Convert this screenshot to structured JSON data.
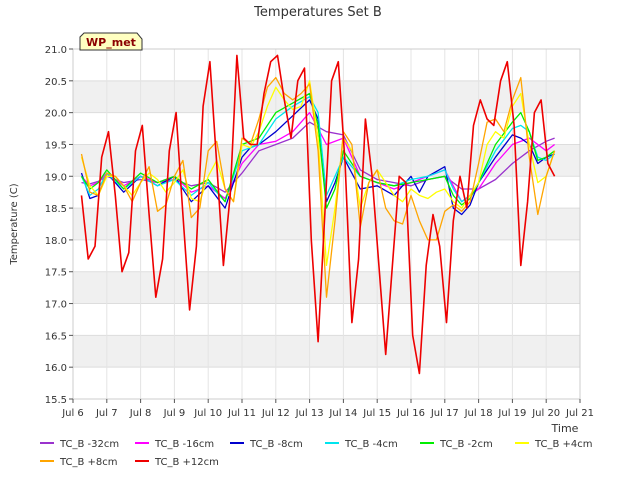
{
  "chart_data": {
    "type": "line",
    "title": "Temperatures Set B",
    "xlabel": "Time",
    "ylabel": "Temperature (C)",
    "badge": "WP_met",
    "xlim": [
      6,
      21
    ],
    "ylim": [
      15.5,
      21.0
    ],
    "x_ticks": [
      {
        "v": 6,
        "label": "Jul 6"
      },
      {
        "v": 7,
        "label": "Jul 7"
      },
      {
        "v": 8,
        "label": "Jul 8"
      },
      {
        "v": 9,
        "label": "Jul 9"
      },
      {
        "v": 10,
        "label": "Jul 10"
      },
      {
        "v": 11,
        "label": "Jul 11"
      },
      {
        "v": 12,
        "label": "Jul 12"
      },
      {
        "v": 13,
        "label": "Jul 13"
      },
      {
        "v": 14,
        "label": "Jul 14"
      },
      {
        "v": 15,
        "label": "Jul 15"
      },
      {
        "v": 16,
        "label": "Jul 16"
      },
      {
        "v": 17,
        "label": "Jul 17"
      },
      {
        "v": 18,
        "label": "Jul 18"
      },
      {
        "v": 19,
        "label": "Jul 19"
      },
      {
        "v": 20,
        "label": "Jul 20"
      },
      {
        "v": 21,
        "label": "Jul 21"
      }
    ],
    "y_ticks": [
      {
        "v": 15.5,
        "label": "15.5"
      },
      {
        "v": 16.0,
        "label": "16.0"
      },
      {
        "v": 16.5,
        "label": "16.5"
      },
      {
        "v": 17.0,
        "label": "17.0"
      },
      {
        "v": 17.5,
        "label": "17.5"
      },
      {
        "v": 18.0,
        "label": "18.0"
      },
      {
        "v": 18.5,
        "label": "18.5"
      },
      {
        "v": 19.0,
        "label": "19.0"
      },
      {
        "v": 19.5,
        "label": "19.5"
      },
      {
        "v": 20.0,
        "label": "20.0"
      },
      {
        "v": 20.5,
        "label": "20.5"
      },
      {
        "v": 21.0,
        "label": "21.0"
      }
    ],
    "grid": true,
    "legend_placement": "bottom",
    "series": [
      {
        "name": "TC_B -32cm",
        "color": "#9a32cd",
        "x": [
          6.25,
          6.5,
          6.75,
          7,
          7.5,
          8,
          8.5,
          9,
          9.5,
          10,
          10.5,
          11,
          11.5,
          12,
          12.5,
          13,
          13.5,
          14,
          14.5,
          15,
          15.5,
          16,
          16.5,
          17,
          17.5,
          18,
          18.5,
          19,
          19.5,
          20,
          20.25
        ],
        "y": [
          18.9,
          18.88,
          18.92,
          19.0,
          18.9,
          18.95,
          18.9,
          18.95,
          18.85,
          18.9,
          18.75,
          19.05,
          19.4,
          19.5,
          19.6,
          19.85,
          19.7,
          19.65,
          19.1,
          18.95,
          18.9,
          18.85,
          18.95,
          19.0,
          18.8,
          18.8,
          18.95,
          19.2,
          19.4,
          19.55,
          19.6
        ]
      },
      {
        "name": "TC_B -16cm",
        "color": "#ff00ff",
        "x": [
          6.25,
          6.5,
          6.75,
          7,
          7.5,
          8,
          8.5,
          9,
          9.5,
          10,
          10.5,
          11,
          11.5,
          12,
          12.5,
          13,
          13.5,
          14,
          14.5,
          15,
          15.5,
          16,
          16.5,
          17,
          17.5,
          18,
          18.5,
          19,
          19.5,
          20,
          20.25
        ],
        "y": [
          19.0,
          18.85,
          18.9,
          19.05,
          18.85,
          19.0,
          18.9,
          19.0,
          18.75,
          18.85,
          18.65,
          19.2,
          19.5,
          19.55,
          19.7,
          20.0,
          19.5,
          19.6,
          19.0,
          18.9,
          18.8,
          18.9,
          19.0,
          19.1,
          18.6,
          18.8,
          19.2,
          19.5,
          19.6,
          19.4,
          19.5
        ]
      },
      {
        "name": "TC_B -8cm",
        "color": "#0000cd",
        "x": [
          6.25,
          6.5,
          6.75,
          7,
          7.5,
          8,
          8.5,
          9,
          9.5,
          10,
          10.5,
          11,
          11.25,
          11.5,
          11.75,
          12,
          12.5,
          13,
          13.25,
          13.5,
          13.75,
          14,
          14.5,
          15,
          15.5,
          16,
          16.25,
          16.5,
          17,
          17.25,
          17.5,
          17.75,
          18,
          18.5,
          19,
          19.25,
          19.5,
          19.75,
          20,
          20.25
        ],
        "y": [
          19.05,
          18.65,
          18.7,
          19.05,
          18.75,
          19.0,
          18.85,
          19.0,
          18.6,
          18.85,
          18.5,
          19.3,
          19.45,
          19.5,
          19.6,
          19.7,
          19.95,
          20.2,
          19.9,
          18.6,
          18.9,
          19.3,
          18.8,
          18.85,
          18.7,
          19.0,
          18.75,
          19.0,
          19.15,
          18.5,
          18.4,
          18.55,
          18.9,
          19.3,
          19.65,
          19.6,
          19.5,
          19.2,
          19.3,
          19.35
        ]
      },
      {
        "name": "TC_B -4cm",
        "color": "#00e5ee",
        "x": [
          6.25,
          6.5,
          6.75,
          7,
          7.5,
          8,
          8.5,
          9,
          9.5,
          10,
          10.5,
          11,
          11.5,
          12,
          12.5,
          13,
          13.25,
          13.5,
          13.75,
          14,
          14.5,
          15,
          15.5,
          16,
          16.5,
          17,
          17.25,
          17.5,
          17.75,
          18,
          18.5,
          19,
          19.25,
          19.5,
          19.75,
          20,
          20.25
        ],
        "y": [
          19.0,
          18.7,
          18.8,
          19.05,
          18.8,
          19.0,
          18.85,
          18.95,
          18.7,
          18.9,
          18.6,
          19.4,
          19.5,
          19.9,
          20.1,
          20.25,
          20.0,
          18.7,
          19.0,
          19.3,
          19.0,
          18.9,
          18.85,
          18.95,
          19.0,
          19.1,
          18.8,
          18.6,
          18.7,
          18.9,
          19.4,
          19.75,
          19.8,
          19.7,
          19.3,
          19.25,
          19.35
        ]
      },
      {
        "name": "TC_B -2cm",
        "color": "#00ee00",
        "x": [
          6.25,
          6.5,
          6.75,
          7,
          7.5,
          8,
          8.5,
          9,
          9.5,
          10,
          10.5,
          11,
          11.5,
          12,
          12.5,
          13,
          13.25,
          13.5,
          13.75,
          14,
          14.5,
          15,
          15.5,
          16,
          16.5,
          17,
          17.25,
          17.5,
          17.75,
          18,
          18.5,
          19,
          19.25,
          19.5,
          19.75,
          20,
          20.25
        ],
        "y": [
          19.0,
          18.8,
          18.9,
          19.1,
          18.8,
          19.05,
          18.9,
          19.0,
          18.8,
          18.95,
          18.6,
          19.5,
          19.6,
          20.0,
          20.15,
          20.3,
          19.8,
          18.5,
          18.8,
          19.4,
          19.0,
          18.9,
          18.85,
          18.9,
          18.95,
          19.0,
          18.7,
          18.55,
          18.65,
          18.9,
          19.5,
          19.85,
          20.0,
          19.7,
          19.25,
          19.3,
          19.4
        ]
      },
      {
        "name": "TC_B +4cm",
        "color": "#ffff00",
        "x": [
          6.25,
          6.5,
          6.75,
          7,
          7.25,
          7.5,
          7.75,
          8,
          8.25,
          8.5,
          8.75,
          9,
          9.25,
          9.5,
          9.75,
          10,
          10.25,
          10.5,
          10.75,
          11,
          11.25,
          11.5,
          11.75,
          12,
          12.25,
          12.5,
          12.75,
          13,
          13.25,
          13.5,
          13.75,
          14,
          14.25,
          14.5,
          14.75,
          15,
          15.25,
          15.5,
          15.75,
          16,
          16.25,
          16.5,
          16.75,
          17,
          17.25,
          17.5,
          17.75,
          18,
          18.25,
          18.5,
          18.75,
          19,
          19.25,
          19.5,
          19.75,
          20,
          20.25
        ],
        "y": [
          19.3,
          18.85,
          18.7,
          19.0,
          19.0,
          18.85,
          18.7,
          18.9,
          19.05,
          18.95,
          18.75,
          18.9,
          19.1,
          18.65,
          18.6,
          19.0,
          19.25,
          18.8,
          18.6,
          19.5,
          19.45,
          19.7,
          20.1,
          20.4,
          20.2,
          20.05,
          20.1,
          20.5,
          19.6,
          17.6,
          18.5,
          19.6,
          19.4,
          18.5,
          18.9,
          19.1,
          18.9,
          18.7,
          18.6,
          18.8,
          18.7,
          18.65,
          18.75,
          18.8,
          18.6,
          18.5,
          18.7,
          18.9,
          19.5,
          19.7,
          19.6,
          20.1,
          20.3,
          19.5,
          18.9,
          19.0,
          19.4
        ]
      },
      {
        "name": "TC_B +8cm",
        "color": "#ffa500",
        "x": [
          6.25,
          6.5,
          6.75,
          7,
          7.25,
          7.5,
          7.75,
          8,
          8.25,
          8.5,
          8.75,
          9,
          9.25,
          9.5,
          9.75,
          10,
          10.25,
          10.5,
          10.75,
          11,
          11.25,
          11.5,
          11.75,
          12,
          12.25,
          12.5,
          12.75,
          13,
          13.25,
          13.5,
          13.75,
          14,
          14.25,
          14.5,
          14.75,
          15,
          15.25,
          15.5,
          15.75,
          16,
          16.25,
          16.5,
          16.75,
          17,
          17.25,
          17.5,
          17.75,
          18,
          18.25,
          18.5,
          18.75,
          19,
          19.25,
          19.5,
          19.75,
          20,
          20.25
        ],
        "y": [
          19.35,
          18.75,
          18.7,
          19.05,
          19.0,
          18.85,
          18.6,
          18.9,
          19.15,
          18.45,
          18.55,
          19.0,
          19.25,
          18.35,
          18.5,
          19.4,
          19.55,
          18.8,
          18.6,
          19.6,
          19.5,
          19.9,
          20.4,
          20.55,
          20.3,
          20.2,
          20.3,
          20.45,
          19.4,
          17.1,
          18.3,
          19.7,
          19.5,
          18.2,
          18.9,
          19.1,
          18.5,
          18.3,
          18.25,
          18.7,
          18.3,
          18.0,
          18.0,
          18.45,
          18.55,
          18.45,
          18.6,
          19.2,
          19.85,
          19.9,
          19.7,
          20.2,
          20.55,
          19.3,
          18.4,
          19.0,
          19.4
        ]
      },
      {
        "name": "TC_B +12cm",
        "color": "#ee0000",
        "x": [
          6.25,
          6.45,
          6.65,
          6.85,
          7.05,
          7.25,
          7.45,
          7.65,
          7.85,
          8.05,
          8.25,
          8.45,
          8.65,
          8.85,
          9.05,
          9.25,
          9.45,
          9.65,
          9.85,
          10.05,
          10.25,
          10.45,
          10.65,
          10.85,
          11.05,
          11.25,
          11.45,
          11.65,
          11.85,
          12.05,
          12.25,
          12.45,
          12.65,
          12.85,
          13.05,
          13.25,
          13.45,
          13.65,
          13.85,
          14.05,
          14.25,
          14.45,
          14.65,
          14.85,
          15.05,
          15.25,
          15.45,
          15.65,
          15.85,
          16.05,
          16.25,
          16.45,
          16.65,
          16.85,
          17.05,
          17.25,
          17.45,
          17.65,
          17.85,
          18.05,
          18.25,
          18.45,
          18.65,
          18.85,
          19.05,
          19.25,
          19.45,
          19.65,
          19.85,
          20.05,
          20.25
        ],
        "y": [
          18.7,
          17.7,
          17.9,
          19.3,
          19.7,
          18.7,
          17.5,
          17.8,
          19.4,
          19.8,
          18.4,
          17.1,
          17.7,
          19.4,
          20.0,
          18.4,
          16.9,
          17.9,
          20.1,
          20.8,
          19.2,
          17.6,
          18.7,
          20.9,
          19.6,
          19.5,
          19.5,
          20.3,
          20.8,
          20.9,
          20.2,
          19.6,
          20.5,
          20.7,
          18.0,
          16.4,
          18.4,
          20.5,
          20.8,
          19.2,
          16.7,
          17.7,
          19.9,
          19.0,
          17.6,
          16.2,
          17.6,
          19.0,
          18.9,
          16.5,
          15.9,
          17.6,
          18.4,
          17.9,
          16.7,
          18.3,
          19.0,
          18.5,
          19.8,
          20.2,
          19.9,
          19.8,
          20.5,
          20.8,
          19.8,
          17.6,
          18.6,
          20.0,
          20.2,
          19.2,
          19.0
        ]
      }
    ]
  }
}
